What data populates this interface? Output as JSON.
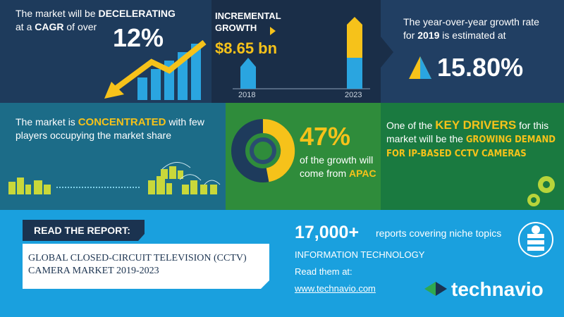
{
  "cagr_panel": {
    "line1_prefix": "The market will be",
    "line1_emphasis": "DECELERATING",
    "line2_prefix": "at a",
    "line2_emphasis": "CAGR",
    "line2_suffix": "of over",
    "value": "12%"
  },
  "incremental_panel": {
    "label_line1": "INCREMENTAL",
    "label_line2": "GROWTH",
    "value": "$8.65 bn",
    "start_year": "2018",
    "end_year": "2023"
  },
  "yoy_panel": {
    "line1": "The year-over-year growth rate",
    "line2_prefix": "for",
    "line2_emphasis": "2019",
    "line2_suffix": "is estimated at",
    "value": "15.80%"
  },
  "concentration_panel": {
    "prefix": "The market is",
    "emphasis": "CONCENTRATED",
    "suffix": "with few players occupying the market share"
  },
  "region_panel": {
    "value": "47%",
    "line1": "of the growth will",
    "line2_prefix": "come from",
    "line2_emphasis": "APAC"
  },
  "drivers_panel": {
    "prefix": "One of the",
    "emphasis": "KEY DRIVERS",
    "middle": "for this market will be the",
    "driver": "GROWING DEMAND FOR IP-BASED CCTV CAMERAS"
  },
  "report": {
    "banner": "READ THE REPORT:",
    "title": "GLOBAL CLOSED-CIRCUIT TELEVISION (CCTV) CAMERA MARKET 2019-2023"
  },
  "library": {
    "count": "17,000+",
    "count_caption": "reports covering niche topics",
    "category": "INFORMATION TECHNOLOGY",
    "read_prompt": "Read them at:",
    "url": "www.technavio.com"
  },
  "brand": {
    "logo": "technavio"
  }
}
